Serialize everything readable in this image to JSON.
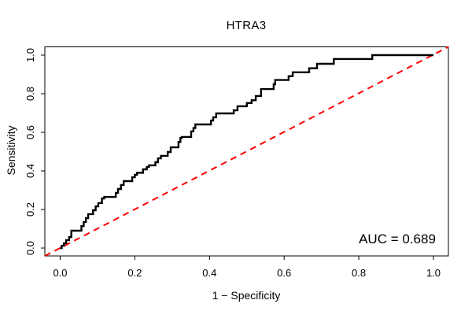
{
  "figure": {
    "title": "HTRA3",
    "annotation": "AUC = 0.689"
  },
  "axes": {
    "x": {
      "label": "1 − Specificity",
      "ticks": [
        "0.0",
        "0.2",
        "0.4",
        "0.6",
        "0.8",
        "1.0"
      ]
    },
    "y": {
      "label": "Sensitivity",
      "ticks": [
        "0.0",
        "0.2",
        "0.4",
        "0.6",
        "0.8",
        "1.0"
      ]
    }
  },
  "colors": {
    "roc_curve": "#000000",
    "diagonal": "#ff0000",
    "box": "#000000",
    "tick": "#000000",
    "text": "#000000",
    "background": "#ffffff"
  },
  "chart_data": {
    "type": "line",
    "subtype": "roc-curve-step",
    "title": "HTRA3",
    "xlabel": "1 − Specificity",
    "ylabel": "Sensitivity",
    "xlim": [
      0,
      1
    ],
    "ylim": [
      0,
      1
    ],
    "grid": false,
    "legend": "none",
    "auc": 0.689,
    "annotation": "AUC = 0.689",
    "series": [
      {
        "name": "ROC curve (HTRA3)",
        "color": "#000000",
        "line_style": "solid",
        "line_width": 2.4,
        "step": true,
        "points": [
          [
            0.0,
            0.0
          ],
          [
            0.004,
            0.0
          ],
          [
            0.004,
            0.012
          ],
          [
            0.01,
            0.012
          ],
          [
            0.01,
            0.025
          ],
          [
            0.016,
            0.025
          ],
          [
            0.016,
            0.041
          ],
          [
            0.024,
            0.041
          ],
          [
            0.024,
            0.057
          ],
          [
            0.03,
            0.057
          ],
          [
            0.03,
            0.09
          ],
          [
            0.057,
            0.09
          ],
          [
            0.057,
            0.114
          ],
          [
            0.063,
            0.114
          ],
          [
            0.063,
            0.135
          ],
          [
            0.069,
            0.135
          ],
          [
            0.069,
            0.155
          ],
          [
            0.075,
            0.155
          ],
          [
            0.075,
            0.176
          ],
          [
            0.088,
            0.176
          ],
          [
            0.088,
            0.196
          ],
          [
            0.095,
            0.196
          ],
          [
            0.095,
            0.216
          ],
          [
            0.102,
            0.216
          ],
          [
            0.102,
            0.233
          ],
          [
            0.112,
            0.233
          ],
          [
            0.112,
            0.257
          ],
          [
            0.118,
            0.257
          ],
          [
            0.118,
            0.265
          ],
          [
            0.149,
            0.265
          ],
          [
            0.149,
            0.286
          ],
          [
            0.155,
            0.286
          ],
          [
            0.155,
            0.306
          ],
          [
            0.163,
            0.306
          ],
          [
            0.163,
            0.327
          ],
          [
            0.17,
            0.327
          ],
          [
            0.17,
            0.347
          ],
          [
            0.193,
            0.347
          ],
          [
            0.193,
            0.367
          ],
          [
            0.2,
            0.367
          ],
          [
            0.2,
            0.38
          ],
          [
            0.206,
            0.38
          ],
          [
            0.206,
            0.39
          ],
          [
            0.222,
            0.39
          ],
          [
            0.222,
            0.408
          ],
          [
            0.232,
            0.408
          ],
          [
            0.232,
            0.42
          ],
          [
            0.238,
            0.42
          ],
          [
            0.238,
            0.429
          ],
          [
            0.255,
            0.429
          ],
          [
            0.255,
            0.445
          ],
          [
            0.262,
            0.445
          ],
          [
            0.262,
            0.465
          ],
          [
            0.27,
            0.465
          ],
          [
            0.27,
            0.478
          ],
          [
            0.288,
            0.478
          ],
          [
            0.288,
            0.498
          ],
          [
            0.296,
            0.498
          ],
          [
            0.296,
            0.522
          ],
          [
            0.317,
            0.522
          ],
          [
            0.317,
            0.55
          ],
          [
            0.322,
            0.55
          ],
          [
            0.322,
            0.571
          ],
          [
            0.326,
            0.571
          ],
          [
            0.326,
            0.576
          ],
          [
            0.351,
            0.576
          ],
          [
            0.351,
            0.605
          ],
          [
            0.357,
            0.605
          ],
          [
            0.357,
            0.622
          ],
          [
            0.362,
            0.622
          ],
          [
            0.362,
            0.641
          ],
          [
            0.404,
            0.641
          ],
          [
            0.404,
            0.661
          ],
          [
            0.41,
            0.661
          ],
          [
            0.41,
            0.678
          ],
          [
            0.418,
            0.678
          ],
          [
            0.418,
            0.698
          ],
          [
            0.465,
            0.698
          ],
          [
            0.465,
            0.714
          ],
          [
            0.475,
            0.714
          ],
          [
            0.475,
            0.735
          ],
          [
            0.5,
            0.735
          ],
          [
            0.5,
            0.752
          ],
          [
            0.513,
            0.752
          ],
          [
            0.513,
            0.766
          ],
          [
            0.524,
            0.766
          ],
          [
            0.524,
            0.788
          ],
          [
            0.538,
            0.788
          ],
          [
            0.538,
            0.824
          ],
          [
            0.572,
            0.824
          ],
          [
            0.572,
            0.849
          ],
          [
            0.576,
            0.849
          ],
          [
            0.576,
            0.871
          ],
          [
            0.612,
            0.871
          ],
          [
            0.612,
            0.891
          ],
          [
            0.623,
            0.891
          ],
          [
            0.623,
            0.911
          ],
          [
            0.667,
            0.911
          ],
          [
            0.667,
            0.932
          ],
          [
            0.688,
            0.932
          ],
          [
            0.688,
            0.955
          ],
          [
            0.733,
            0.955
          ],
          [
            0.733,
            0.98
          ],
          [
            0.836,
            0.98
          ],
          [
            0.836,
            1.0
          ],
          [
            1.0,
            1.0
          ]
        ]
      },
      {
        "name": "chance diagonal",
        "color": "#ff0000",
        "line_style": "dashed",
        "line_width": 2,
        "step": false,
        "points": [
          [
            0,
            0
          ],
          [
            1,
            1
          ]
        ]
      }
    ]
  }
}
